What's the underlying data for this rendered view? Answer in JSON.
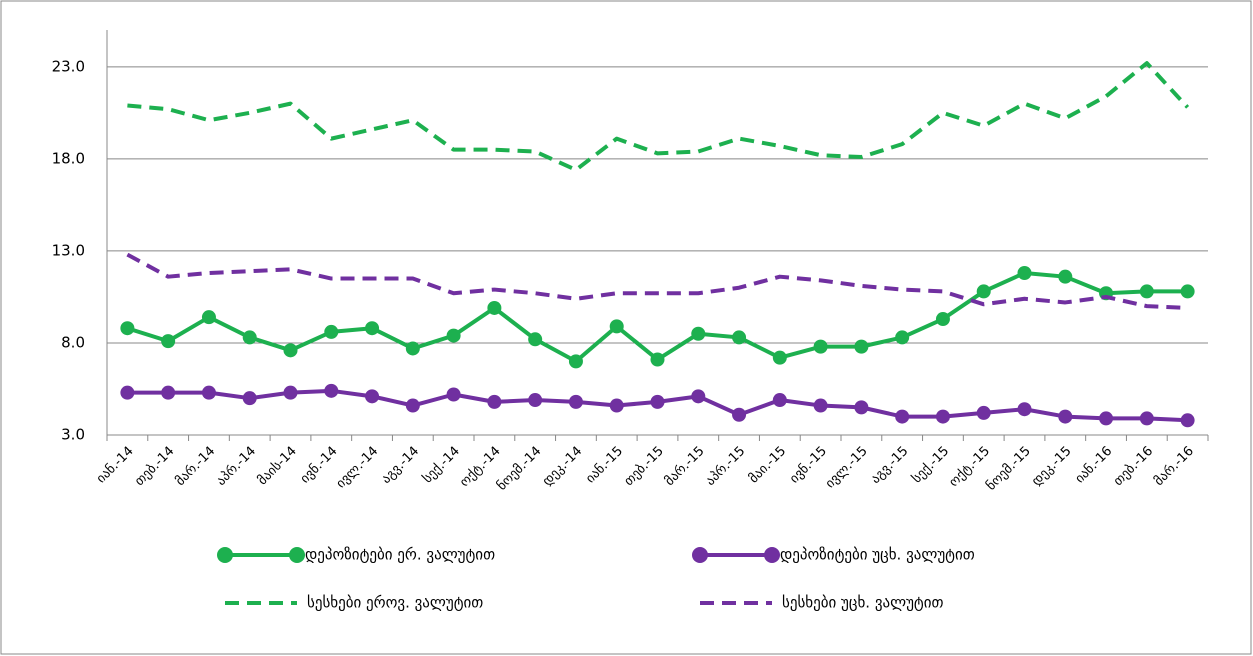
{
  "chart_data": {
    "type": "line",
    "categories": [
      "იან.-14",
      "თებ.-14",
      "მარ.-14",
      "აპრ.-14",
      "მაის-14",
      "ივნ.-14",
      "ივლ.-14",
      "აგვ.-14",
      "სექ.-14",
      "ოქტ.-14",
      "ნოემ.-14",
      "დეკ.-14",
      "იან.-15",
      "თებ.-15",
      "მარ.-15",
      "აპრ.-15",
      "მაი.-15",
      "ივნ.-15",
      "ივლ.-15",
      "აგვ.-15",
      "სექ.-15",
      "ოქტ.-15",
      "ნოემ.-15",
      "დეკ.-15",
      "იან.-16",
      "თებ.-16",
      "მარ.-16"
    ],
    "series": [
      {
        "name": "დეპოზიტები ერ. ვალუტით",
        "color": "#1db04f",
        "style": "solid",
        "markers": true,
        "values": [
          8.8,
          8.1,
          9.4,
          8.3,
          7.6,
          8.6,
          8.8,
          7.7,
          8.4,
          9.9,
          8.2,
          7.0,
          8.9,
          7.1,
          8.5,
          8.3,
          7.2,
          7.8,
          7.8,
          8.3,
          9.3,
          10.8,
          11.8,
          11.6,
          10.7,
          10.8,
          10.8
        ]
      },
      {
        "name": "დეპოზიტები უცხ. ვალუტით",
        "color": "#7030a0",
        "style": "solid",
        "markers": true,
        "values": [
          5.3,
          5.3,
          5.3,
          5.0,
          5.3,
          5.4,
          5.1,
          4.6,
          5.2,
          4.8,
          4.9,
          4.8,
          4.6,
          4.8,
          5.1,
          4.1,
          4.9,
          4.6,
          4.5,
          4.0,
          4.0,
          4.2,
          4.4,
          4.0,
          3.9,
          3.9,
          3.8
        ]
      },
      {
        "name": "სესხები ეროვ. ვალუტით",
        "color": "#1db04f",
        "style": "dashed",
        "markers": false,
        "values": [
          20.9,
          20.7,
          20.1,
          20.5,
          21.0,
          19.1,
          19.6,
          20.1,
          18.5,
          18.5,
          18.4,
          17.4,
          19.1,
          18.3,
          18.4,
          19.1,
          18.7,
          18.2,
          18.1,
          18.8,
          20.5,
          19.8,
          21.0,
          20.2,
          21.4,
          23.2,
          20.8
        ]
      },
      {
        "name": "სესხები უცხ. ვალუტით",
        "color": "#7030a0",
        "style": "dashed",
        "markers": false,
        "values": [
          12.8,
          11.6,
          11.8,
          11.9,
          12.0,
          11.5,
          11.5,
          11.5,
          10.7,
          10.9,
          10.7,
          10.4,
          10.7,
          10.7,
          10.7,
          11.0,
          11.6,
          11.4,
          11.1,
          10.9,
          10.8,
          10.1,
          10.4,
          10.2,
          10.5,
          10.0,
          9.9
        ]
      }
    ],
    "ylim": [
      3,
      25
    ],
    "yticks": [
      {
        "value": 3,
        "label": "3.0"
      },
      {
        "value": 8,
        "label": "8.0"
      },
      {
        "value": 13,
        "label": "13.0"
      },
      {
        "value": 18,
        "label": "18.0"
      },
      {
        "value": 23,
        "label": "23.0"
      }
    ],
    "grid": true
  }
}
